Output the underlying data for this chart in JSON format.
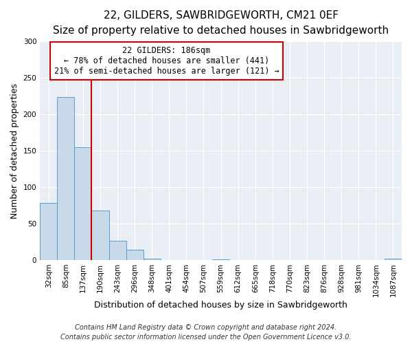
{
  "title": "22, GILDERS, SAWBRIDGEWORTH, CM21 0EF",
  "subtitle": "Size of property relative to detached houses in Sawbridgeworth",
  "xlabel": "Distribution of detached houses by size in Sawbridgeworth",
  "ylabel": "Number of detached properties",
  "bin_labels": [
    "32sqm",
    "85sqm",
    "137sqm",
    "190sqm",
    "243sqm",
    "296sqm",
    "348sqm",
    "401sqm",
    "454sqm",
    "507sqm",
    "559sqm",
    "612sqm",
    "665sqm",
    "718sqm",
    "770sqm",
    "823sqm",
    "876sqm",
    "928sqm",
    "981sqm",
    "1034sqm",
    "1087sqm"
  ],
  "bar_values": [
    78,
    224,
    155,
    68,
    26,
    14,
    2,
    0,
    0,
    0,
    1,
    0,
    0,
    0,
    0,
    0,
    0,
    0,
    0,
    0,
    2
  ],
  "bar_color": "#c8d9ea",
  "bar_edge_color": "#5a9bc8",
  "vline_color": "#cc0000",
  "ylim": [
    0,
    300
  ],
  "yticks": [
    0,
    50,
    100,
    150,
    200,
    250,
    300
  ],
  "annotation_title": "22 GILDERS: 186sqm",
  "annotation_line1": "← 78% of detached houses are smaller (441)",
  "annotation_line2": "21% of semi-detached houses are larger (121) →",
  "annotation_box_color": "#cc0000",
  "footer_line1": "Contains HM Land Registry data © Crown copyright and database right 2024.",
  "footer_line2": "Contains public sector information licensed under the Open Government Licence v3.0.",
  "background_color": "#ffffff",
  "plot_bg_color": "#e8eef4",
  "grid_color": "#ffffff",
  "title_fontsize": 11,
  "subtitle_fontsize": 9.5,
  "axis_label_fontsize": 9,
  "tick_fontsize": 7.5,
  "annotation_fontsize": 8.5,
  "footer_fontsize": 7
}
